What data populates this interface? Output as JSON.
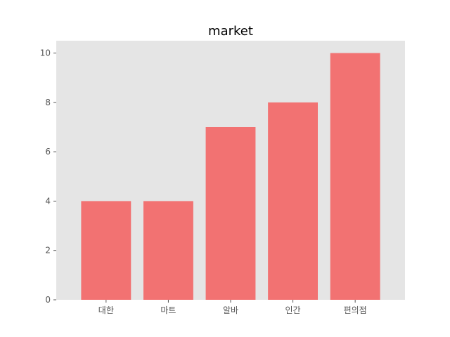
{
  "chart_data": {
    "type": "bar",
    "title": "market",
    "xlabel": "",
    "ylabel": "",
    "categories": [
      "대한",
      "마트",
      "알바",
      "인간",
      "편의점"
    ],
    "values": [
      4,
      4,
      7,
      8,
      10
    ],
    "ylim": [
      0,
      10.5
    ],
    "yticks": [
      0,
      2,
      4,
      6,
      8,
      10
    ],
    "grid": false,
    "colors": {
      "bar": "#f27272",
      "plot_background": "#e5e5e5",
      "page_background": "#ffffff",
      "tick_text": "#555555",
      "title_text": "#000000"
    }
  }
}
